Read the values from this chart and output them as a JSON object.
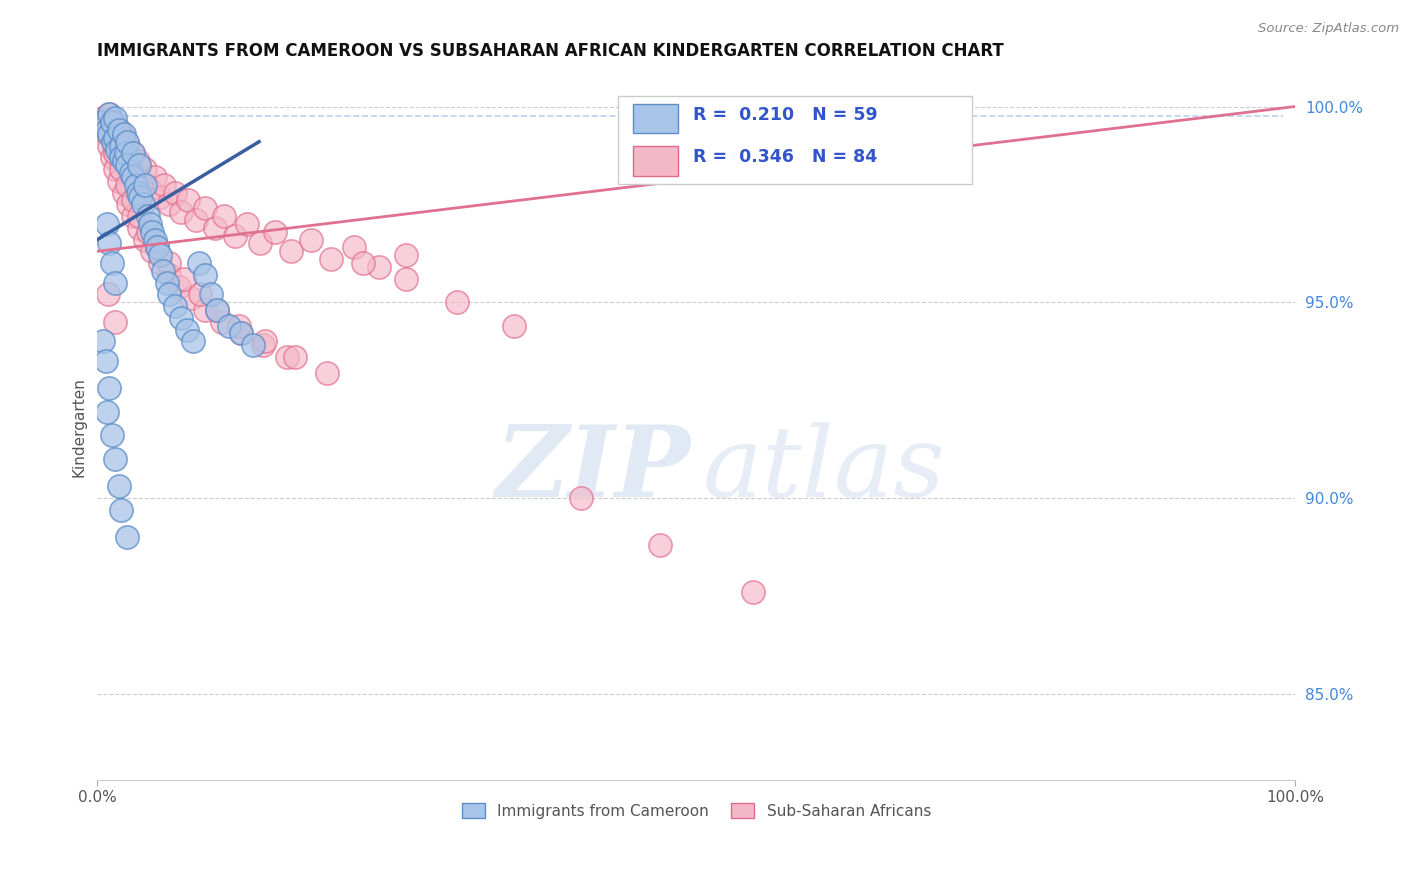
{
  "title": "IMMIGRANTS FROM CAMEROON VS SUBSAHARAN AFRICAN KINDERGARTEN CORRELATION CHART",
  "source": "Source: ZipAtlas.com",
  "ylabel": "Kindergarten",
  "xlim": [
    0.0,
    1.0
  ],
  "ylim": [
    0.828,
    1.008
  ],
  "yticks": [
    0.85,
    0.9,
    0.95,
    1.0
  ],
  "ytick_labels": [
    "85.0%",
    "90.0%",
    "95.0%",
    "100.0%"
  ],
  "xtick_labels": [
    "0.0%",
    "100.0%"
  ],
  "R_blue": 0.21,
  "N_blue": 59,
  "R_pink": 0.346,
  "N_pink": 84,
  "blue_fill": "#a8c4e8",
  "blue_edge": "#5b8dc8",
  "pink_fill": "#f4b8c8",
  "pink_edge": "#e06888",
  "blue_line_color": "#3a5fa0",
  "pink_line_color": "#e07090",
  "dashed_color": "#a8c8e8",
  "watermark_zip": "ZIP",
  "watermark_atlas": "atlas",
  "legend_label_blue": "Immigrants from Cameroon",
  "legend_label_pink": "Sub-Saharan Africans",
  "blue_x": [
    0.005,
    0.008,
    0.01,
    0.01,
    0.012,
    0.013,
    0.015,
    0.015,
    0.016,
    0.018,
    0.02,
    0.02,
    0.022,
    0.022,
    0.024,
    0.025,
    0.025,
    0.028,
    0.03,
    0.03,
    0.032,
    0.034,
    0.035,
    0.036,
    0.038,
    0.04,
    0.042,
    0.044,
    0.046,
    0.048,
    0.05,
    0.052,
    0.055,
    0.058,
    0.06,
    0.065,
    0.07,
    0.075,
    0.08,
    0.085,
    0.09,
    0.095,
    0.1,
    0.11,
    0.12,
    0.13,
    0.008,
    0.01,
    0.012,
    0.015,
    0.005,
    0.007,
    0.01,
    0.008,
    0.012,
    0.015,
    0.018,
    0.02,
    0.025
  ],
  "blue_y": [
    0.996,
    0.994,
    0.998,
    0.993,
    0.996,
    0.991,
    0.997,
    0.992,
    0.989,
    0.994,
    0.99,
    0.987,
    0.993,
    0.986,
    0.988,
    0.985,
    0.991,
    0.983,
    0.988,
    0.982,
    0.98,
    0.978,
    0.985,
    0.977,
    0.975,
    0.98,
    0.972,
    0.97,
    0.968,
    0.966,
    0.964,
    0.962,
    0.958,
    0.955,
    0.952,
    0.949,
    0.946,
    0.943,
    0.94,
    0.96,
    0.957,
    0.952,
    0.948,
    0.944,
    0.942,
    0.939,
    0.97,
    0.965,
    0.96,
    0.955,
    0.94,
    0.935,
    0.928,
    0.922,
    0.916,
    0.91,
    0.903,
    0.897,
    0.89
  ],
  "pink_x": [
    0.005,
    0.008,
    0.01,
    0.012,
    0.014,
    0.016,
    0.018,
    0.02,
    0.022,
    0.024,
    0.026,
    0.028,
    0.03,
    0.032,
    0.034,
    0.036,
    0.04,
    0.044,
    0.048,
    0.052,
    0.056,
    0.06,
    0.065,
    0.07,
    0.076,
    0.082,
    0.09,
    0.098,
    0.106,
    0.115,
    0.125,
    0.136,
    0.148,
    0.162,
    0.178,
    0.195,
    0.214,
    0.235,
    0.258,
    0.005,
    0.008,
    0.01,
    0.012,
    0.015,
    0.018,
    0.022,
    0.026,
    0.03,
    0.035,
    0.04,
    0.046,
    0.052,
    0.06,
    0.068,
    0.078,
    0.09,
    0.104,
    0.12,
    0.138,
    0.158,
    0.015,
    0.02,
    0.025,
    0.03,
    0.035,
    0.042,
    0.05,
    0.06,
    0.072,
    0.086,
    0.1,
    0.118,
    0.14,
    0.165,
    0.192,
    0.222,
    0.258,
    0.3,
    0.348,
    0.404,
    0.47,
    0.547,
    0.009,
    0.015
  ],
  "pink_y": [
    0.997,
    0.995,
    0.998,
    0.993,
    0.996,
    0.991,
    0.994,
    0.989,
    0.992,
    0.987,
    0.99,
    0.985,
    0.988,
    0.983,
    0.986,
    0.981,
    0.984,
    0.979,
    0.982,
    0.977,
    0.98,
    0.975,
    0.978,
    0.973,
    0.976,
    0.971,
    0.974,
    0.969,
    0.972,
    0.967,
    0.97,
    0.965,
    0.968,
    0.963,
    0.966,
    0.961,
    0.964,
    0.959,
    0.962,
    0.996,
    0.993,
    0.99,
    0.987,
    0.984,
    0.981,
    0.978,
    0.975,
    0.972,
    0.969,
    0.966,
    0.963,
    0.96,
    0.957,
    0.954,
    0.951,
    0.948,
    0.945,
    0.942,
    0.939,
    0.936,
    0.988,
    0.984,
    0.98,
    0.976,
    0.972,
    0.968,
    0.964,
    0.96,
    0.956,
    0.952,
    0.948,
    0.944,
    0.94,
    0.936,
    0.932,
    0.96,
    0.956,
    0.95,
    0.944,
    0.9,
    0.888,
    0.876,
    0.952,
    0.945
  ]
}
